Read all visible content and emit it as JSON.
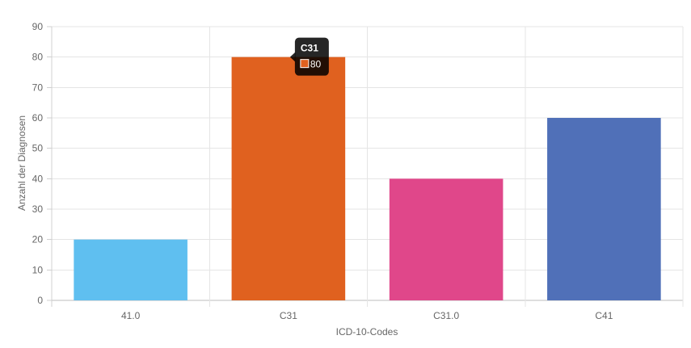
{
  "chart_data": {
    "type": "bar",
    "categories": [
      "41.0",
      "C31",
      "C31.0",
      "C41"
    ],
    "values": [
      20,
      80,
      40,
      60
    ],
    "colors": [
      "#5fbff0",
      "#e0611f",
      "#e0478a",
      "#5070b8"
    ],
    "xlabel": "ICD-10-Codes",
    "ylabel": "Anzahl der Diagnosen",
    "ylim": [
      0,
      90
    ],
    "yticks": [
      0,
      10,
      20,
      30,
      40,
      50,
      60,
      70,
      80,
      90
    ],
    "grid": true,
    "legend": "none",
    "tooltip": {
      "category": "C31",
      "value": "80",
      "color": "#e0611f"
    }
  }
}
